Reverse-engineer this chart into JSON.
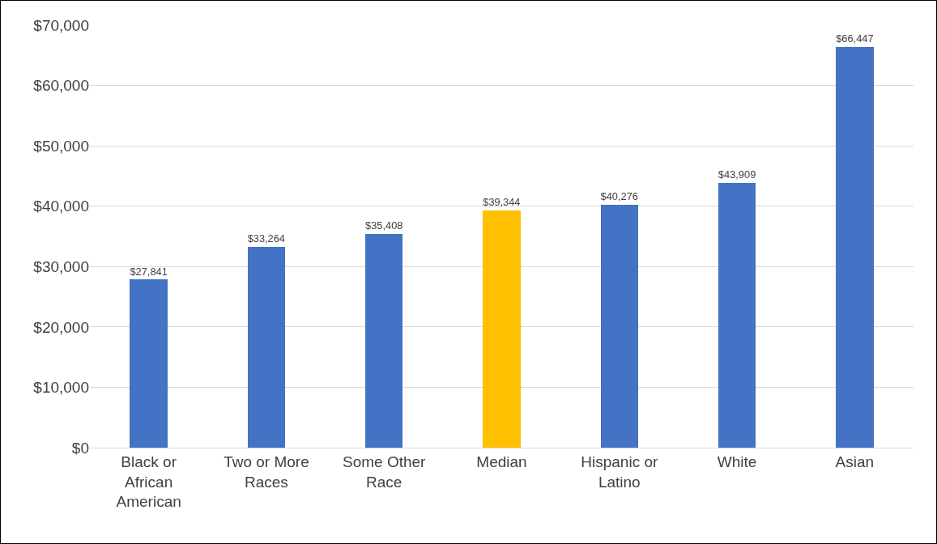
{
  "chart_data": {
    "type": "bar",
    "categories": [
      "Black or African American",
      "Two or More Races",
      "Some Other Race",
      "Median",
      "Hispanic or Latino",
      "White",
      "Asian"
    ],
    "values": [
      27841,
      33264,
      35408,
      39344,
      40276,
      43909,
      66447
    ],
    "colors": [
      "#4472c4",
      "#4472c4",
      "#4472c4",
      "#ffc000",
      "#4472c4",
      "#4472c4",
      "#4472c4"
    ],
    "value_labels": [
      "$27,841",
      "$33,264",
      "$35,408",
      "$39,344",
      "$40,276",
      "$43,909",
      "$66,447"
    ],
    "ylim": [
      0,
      70000
    ],
    "yticks": [
      {
        "value": 0,
        "label": "$0"
      },
      {
        "value": 10000,
        "label": "$10,000"
      },
      {
        "value": 20000,
        "label": "$20,000"
      },
      {
        "value": 30000,
        "label": "$30,000"
      },
      {
        "value": 40000,
        "label": "$40,000"
      },
      {
        "value": 50000,
        "label": "$50,000"
      },
      {
        "value": 60000,
        "label": "$60,000"
      },
      {
        "value": 70000,
        "label": "$70,000"
      }
    ],
    "grid": "y",
    "legend": false
  }
}
